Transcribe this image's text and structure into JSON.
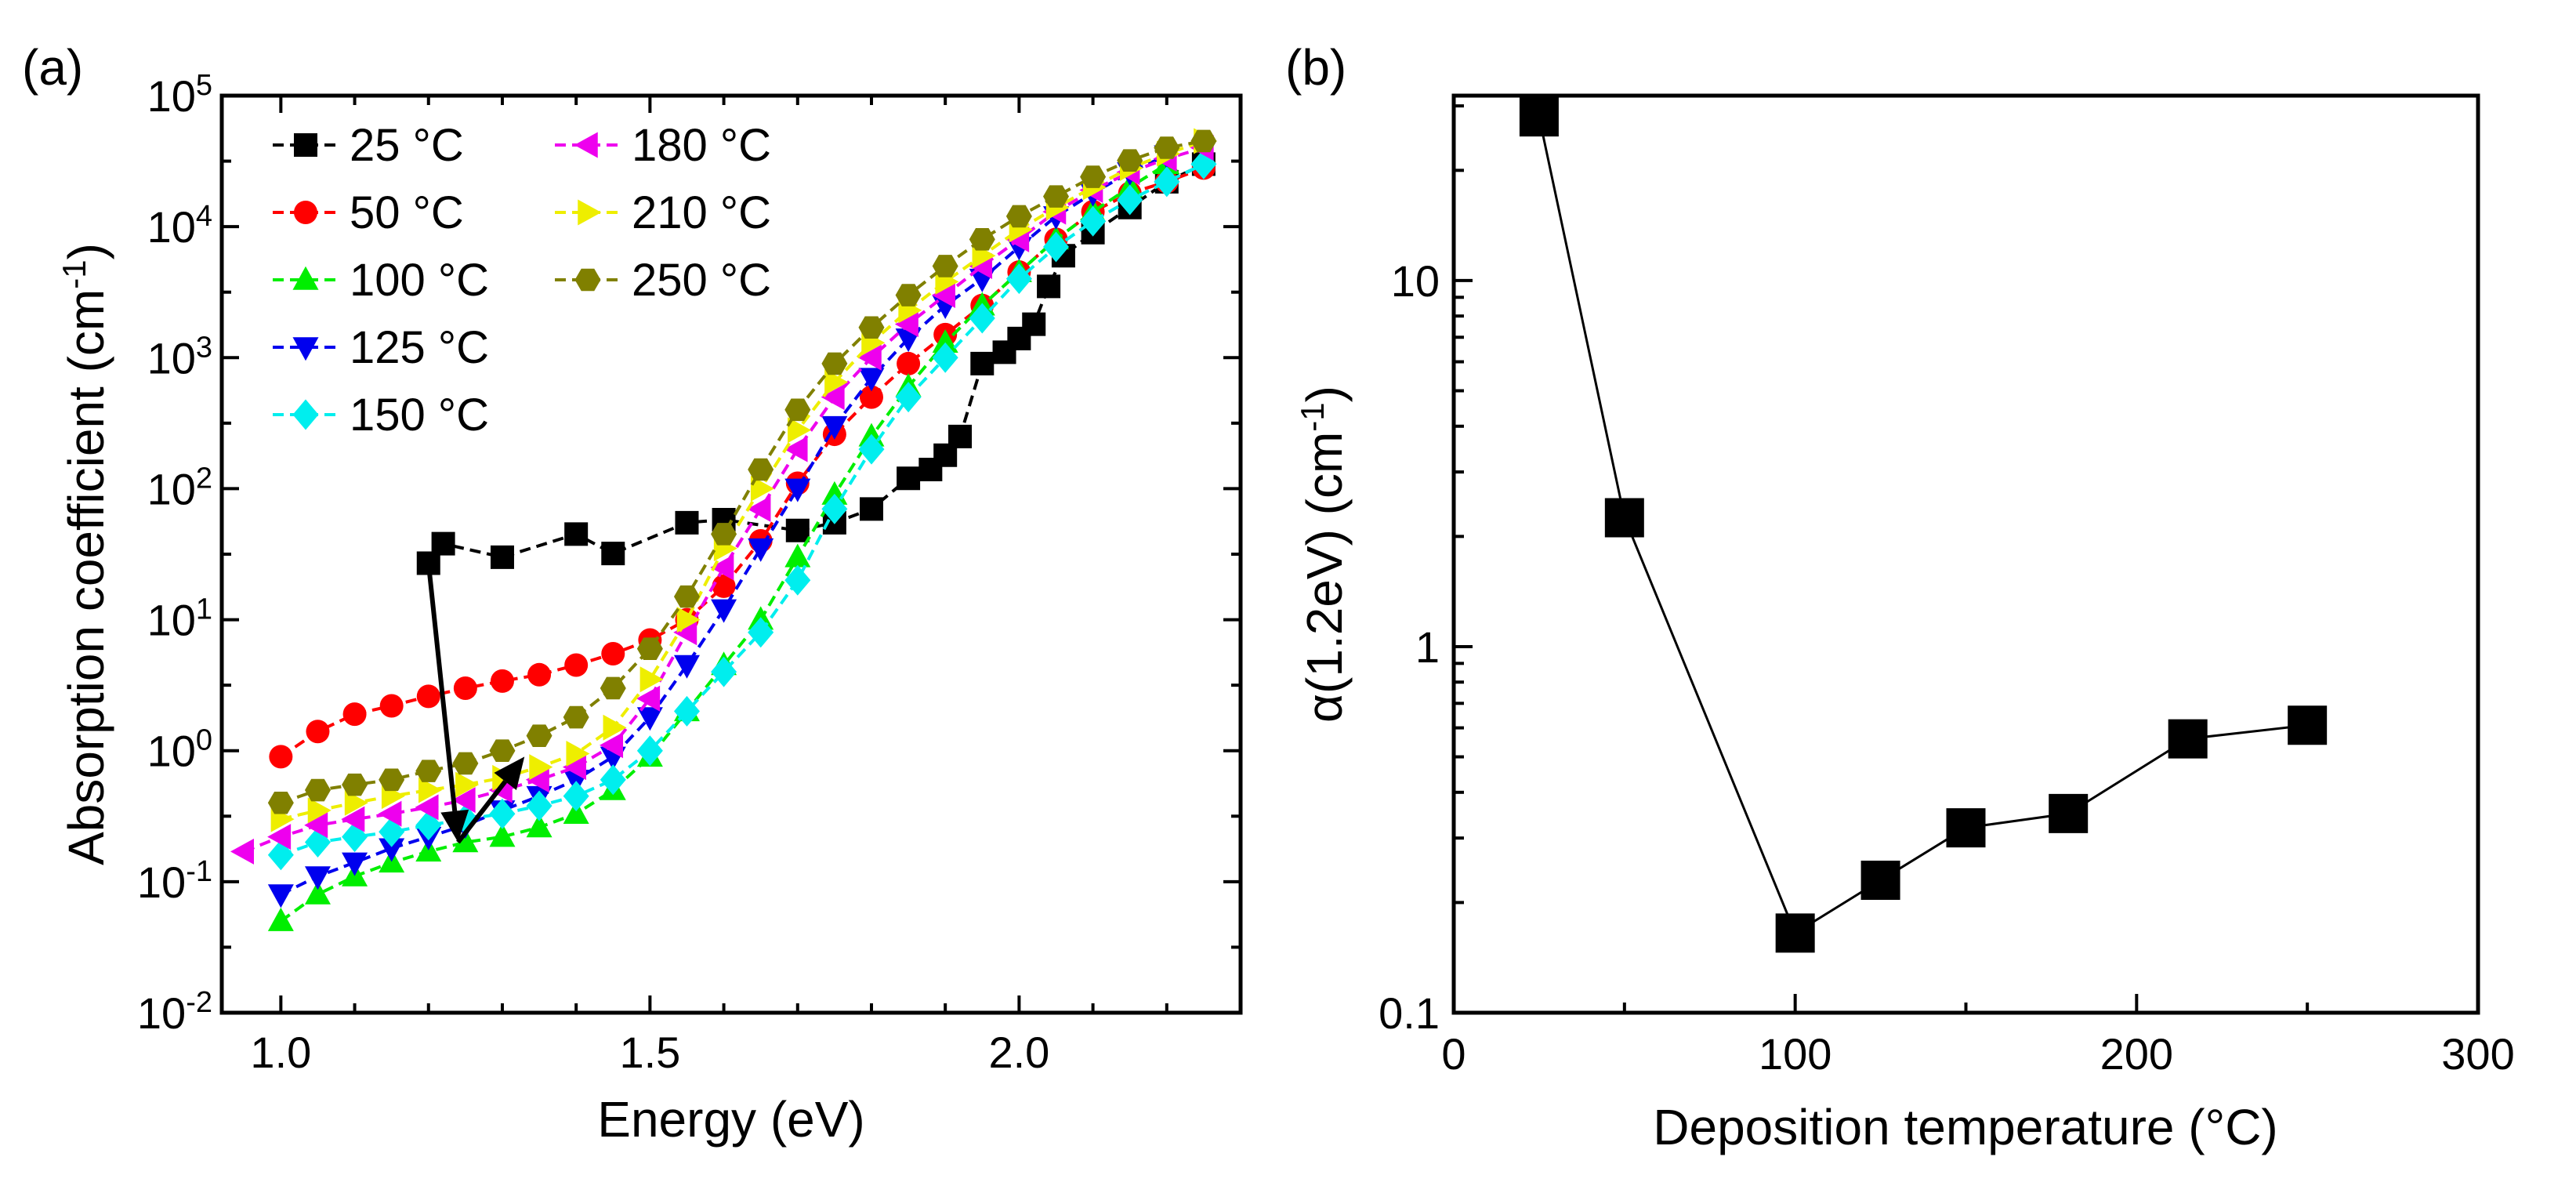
{
  "chart_data": [
    {
      "panel_label": "(a)",
      "type": "scatter",
      "xlabel": "Energy (eV)",
      "ylabel": "Absorption coefficient (cm",
      "ylabel_sup": "-1",
      "ylabel_close": ")",
      "x_scale": "linear",
      "y_scale": "log",
      "xlim": [
        0.92,
        2.3
      ],
      "ylim": [
        0.01,
        100000
      ],
      "xticks": [
        1.0,
        1.5,
        2.0
      ],
      "xtick_labels": [
        "1.0",
        "1.5",
        "2.0"
      ],
      "yticks": [
        0.01,
        0.1,
        1,
        10,
        100,
        1000,
        10000,
        100000
      ],
      "ytick_labels": [
        {
          "base": "10",
          "exp": "-2"
        },
        {
          "base": "10",
          "exp": "-1"
        },
        {
          "base": "10",
          "exp": "0"
        },
        {
          "base": "10",
          "exp": "1"
        },
        {
          "base": "10",
          "exp": "2"
        },
        {
          "base": "10",
          "exp": "3"
        },
        {
          "base": "10",
          "exp": "4"
        },
        {
          "base": "10",
          "exp": "5"
        }
      ],
      "legend_position": "top-left",
      "series": [
        {
          "name": "25 °C",
          "color": "#000000",
          "marker": "square",
          "x": [
            1.2,
            1.22,
            1.3,
            1.4,
            1.45,
            1.55,
            1.6,
            1.7,
            1.75,
            1.8,
            1.85,
            1.88,
            1.9,
            1.92,
            1.95,
            1.98,
            2.0,
            2.02,
            2.04,
            2.06,
            2.1,
            2.15,
            2.2,
            2.25
          ],
          "y": [
            27,
            38,
            30,
            45,
            32,
            55,
            58,
            48,
            55,
            70,
            120,
            140,
            180,
            250,
            900,
            1100,
            1400,
            1800,
            3500,
            6000,
            9000,
            14000,
            22000,
            30000
          ]
        },
        {
          "name": "50 °C",
          "color": "#ff0000",
          "marker": "circle",
          "x": [
            1.0,
            1.05,
            1.1,
            1.15,
            1.2,
            1.25,
            1.3,
            1.35,
            1.4,
            1.45,
            1.5,
            1.55,
            1.6,
            1.65,
            1.7,
            1.75,
            1.8,
            1.85,
            1.9,
            1.95,
            2.0,
            2.05,
            2.1,
            2.15,
            2.2,
            2.25
          ],
          "y": [
            0.9,
            1.4,
            1.9,
            2.2,
            2.6,
            3.0,
            3.4,
            3.8,
            4.5,
            5.5,
            7.0,
            10,
            18,
            40,
            110,
            260,
            500,
            900,
            1500,
            2500,
            4500,
            8000,
            13000,
            18000,
            22000,
            28000
          ]
        },
        {
          "name": "100 °C",
          "color": "#00ee00",
          "marker": "triangle-up",
          "x": [
            1.0,
            1.05,
            1.1,
            1.15,
            1.2,
            1.25,
            1.3,
            1.35,
            1.4,
            1.45,
            1.5,
            1.55,
            1.6,
            1.65,
            1.7,
            1.75,
            1.8,
            1.85,
            1.9,
            1.95,
            2.0,
            2.05,
            2.1,
            2.15,
            2.2
          ],
          "y": [
            0.05,
            0.08,
            0.11,
            0.14,
            0.17,
            0.2,
            0.22,
            0.26,
            0.33,
            0.5,
            0.9,
            2.0,
            4.5,
            10,
            30,
            90,
            250,
            600,
            1300,
            2500,
            4500,
            8000,
            13000,
            20000,
            30000
          ]
        },
        {
          "name": "125 °C",
          "color": "#0000ee",
          "marker": "triangle-down",
          "x": [
            1.0,
            1.05,
            1.1,
            1.15,
            1.2,
            1.25,
            1.3,
            1.35,
            1.4,
            1.45,
            1.5,
            1.55,
            1.6,
            1.65,
            1.7,
            1.75,
            1.8,
            1.85,
            1.9,
            1.95,
            2.0,
            2.05,
            2.1,
            2.15,
            2.2
          ],
          "y": [
            0.08,
            0.11,
            0.14,
            0.18,
            0.22,
            0.27,
            0.35,
            0.45,
            0.6,
            0.9,
            1.8,
            4.5,
            12,
            35,
            100,
            300,
            700,
            1400,
            2500,
            4000,
            7000,
            12000,
            18000,
            26000,
            35000
          ]
        },
        {
          "name": "150 °C",
          "color": "#00eeee",
          "marker": "diamond",
          "x": [
            1.0,
            1.05,
            1.1,
            1.15,
            1.2,
            1.25,
            1.3,
            1.35,
            1.4,
            1.45,
            1.5,
            1.55,
            1.6,
            1.65,
            1.7,
            1.75,
            1.8,
            1.85,
            1.9,
            1.95,
            2.0,
            2.05,
            2.1,
            2.15,
            2.2,
            2.25
          ],
          "y": [
            0.16,
            0.2,
            0.22,
            0.24,
            0.27,
            0.3,
            0.33,
            0.38,
            0.45,
            0.6,
            1.0,
            2.0,
            4.0,
            8.0,
            20,
            70,
            200,
            500,
            1000,
            2000,
            4000,
            7000,
            11000,
            16000,
            22000,
            30000
          ]
        },
        {
          "name": "180 °C",
          "color": "#ee00ee",
          "marker": "triangle-left",
          "x": [
            0.95,
            1.0,
            1.05,
            1.1,
            1.15,
            1.2,
            1.25,
            1.3,
            1.35,
            1.4,
            1.45,
            1.5,
            1.55,
            1.6,
            1.65,
            1.7,
            1.75,
            1.8,
            1.85,
            1.9,
            1.95,
            2.0,
            2.05,
            2.1,
            2.15,
            2.2,
            2.25
          ],
          "y": [
            0.17,
            0.22,
            0.27,
            0.3,
            0.33,
            0.37,
            0.42,
            0.5,
            0.6,
            0.75,
            1.1,
            2.5,
            8,
            25,
            70,
            200,
            500,
            1000,
            1800,
            3000,
            5000,
            8000,
            13000,
            19000,
            26000,
            33000,
            40000
          ]
        },
        {
          "name": "210 °C",
          "color": "#eeee00",
          "marker": "triangle-right",
          "x": [
            1.0,
            1.05,
            1.1,
            1.15,
            1.2,
            1.25,
            1.3,
            1.35,
            1.4,
            1.45,
            1.5,
            1.55,
            1.6,
            1.65,
            1.7,
            1.75,
            1.8,
            1.85,
            1.9,
            1.95,
            2.0,
            2.05,
            2.1,
            2.15,
            2.2,
            2.25
          ],
          "y": [
            0.3,
            0.35,
            0.4,
            0.45,
            0.5,
            0.55,
            0.62,
            0.75,
            0.95,
            1.5,
            3.5,
            10,
            35,
            100,
            280,
            650,
            1300,
            2300,
            3800,
            6000,
            9500,
            14000,
            20000,
            28000,
            36000,
            45000
          ]
        },
        {
          "name": "250 °C",
          "color": "#808000",
          "marker": "hexagon",
          "x": [
            1.0,
            1.05,
            1.1,
            1.15,
            1.2,
            1.25,
            1.3,
            1.35,
            1.4,
            1.45,
            1.5,
            1.55,
            1.6,
            1.65,
            1.7,
            1.75,
            1.8,
            1.85,
            1.9,
            1.95,
            2.0,
            2.05,
            2.1,
            2.15,
            2.2,
            2.25
          ],
          "y": [
            0.4,
            0.5,
            0.55,
            0.6,
            0.7,
            0.8,
            1.0,
            1.3,
            1.8,
            3.0,
            6.0,
            15,
            45,
            140,
            400,
            900,
            1700,
            3000,
            5000,
            8000,
            12000,
            17000,
            24000,
            32000,
            40000,
            45000
          ]
        }
      ],
      "annotations": [
        {
          "type": "arrow",
          "from": [
            1.2,
            27
          ],
          "to": [
            1.24,
            0.2
          ]
        },
        {
          "type": "arrow",
          "from": [
            1.24,
            0.2
          ],
          "to": [
            1.33,
            0.9
          ]
        }
      ]
    },
    {
      "panel_label": "(b)",
      "type": "line",
      "xlabel": "Deposition temperature (°C)",
      "ylabel": "α(1.2eV) (cm",
      "ylabel_sup": "-1",
      "ylabel_close": ")",
      "x_scale": "linear",
      "y_scale": "log",
      "xlim": [
        0,
        300
      ],
      "ylim": [
        0.1,
        32
      ],
      "xticks": [
        0,
        100,
        200,
        300
      ],
      "xtick_labels": [
        "0",
        "100",
        "200",
        "300"
      ],
      "yticks": [
        0.1,
        1,
        10
      ],
      "ytick_labels": [
        "0.1",
        "1",
        "10"
      ],
      "series": [
        {
          "name": "α(1.2eV)",
          "color": "#000000",
          "marker": "square",
          "x": [
            25,
            50,
            100,
            125,
            150,
            180,
            215,
            250
          ],
          "y": [
            28,
            2.25,
            0.165,
            0.23,
            0.32,
            0.35,
            0.56,
            0.61
          ]
        }
      ]
    }
  ]
}
